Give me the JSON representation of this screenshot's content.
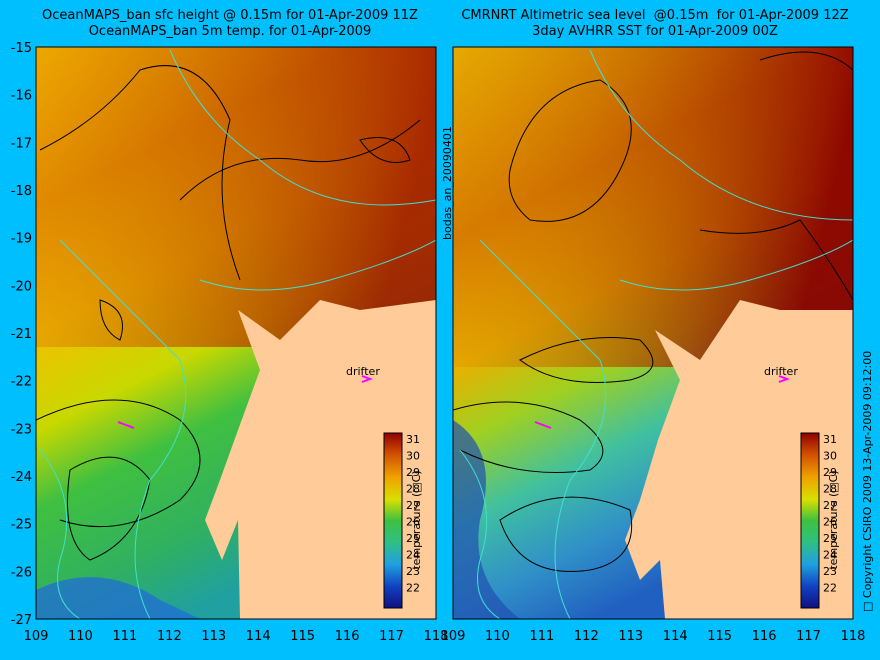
{
  "left_panel": {
    "title_line1": "OceanMAPS_ban sfc height @ 0.15m for 01-Apr-2009 11Z",
    "title_line2": "OceanMAPS_ban 5m temp. for 01-Apr-2009",
    "label_drifter": "drifter"
  },
  "right_panel": {
    "title_line1": "CMRNRT Altimetric sea level  @0.15m  for 01-Apr-2009 12Z",
    "title_line2": "3day AVHRR SST for 01-Apr-2009 00Z",
    "label_drifter": "drifter"
  },
  "side_text_middle": "bodas_an_20090401",
  "side_text_right": "□ Copyright CSIRO 2009   13-Apr-2009 09:12:00",
  "axes": {
    "lat_labels": [
      "-15",
      "-16",
      "-17",
      "-18",
      "-19",
      "-20",
      "-21",
      "-22",
      "-23",
      "-24",
      "-25",
      "-26",
      "-27"
    ],
    "lon_labels": [
      "109",
      "110",
      "111",
      "112",
      "113",
      "114",
      "115",
      "116",
      "117",
      "118"
    ]
  },
  "colorbar": {
    "label": "temperature (□C)",
    "ticks": [
      "31",
      "30",
      "29",
      "28",
      "27",
      "26",
      "25",
      "24",
      "23",
      "22"
    ]
  },
  "colors": {
    "background": "#00bfff",
    "land": "#ffcc99",
    "drifter_marker": "#ff00ff",
    "bathymetry": "#40e0d0"
  }
}
